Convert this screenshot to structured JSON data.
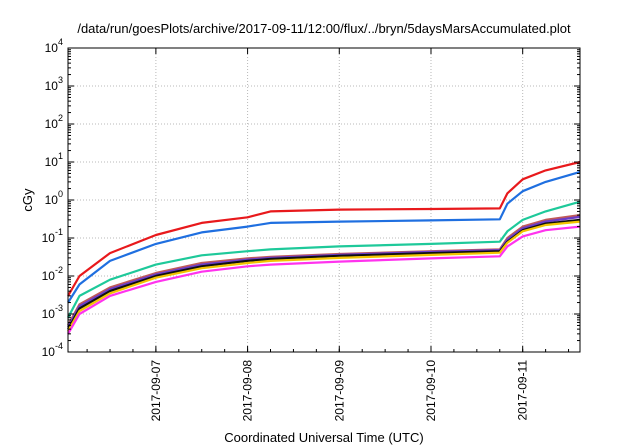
{
  "chart_data": {
    "type": "line",
    "title": "/data/run/goesPlots/archive/2017-09-11/12:00/flux/../bryn/5daysMarsAccumulated.plot",
    "xlabel": "Coordinated Universal Time (UTC)",
    "ylabel": "cGy",
    "x_scale": "time",
    "y_scale": "log",
    "xlim": [
      "2017-09-06T01:00",
      "2017-09-11T15:00"
    ],
    "ylim": [
      0.0001,
      10000
    ],
    "grid": true,
    "x_ticks": [
      "2017-09-07",
      "2017-09-08",
      "2017-09-09",
      "2017-09-10",
      "2017-09-11"
    ],
    "y_ticks": [
      {
        "value": 0.0001,
        "mant": "10",
        "exp": "-4"
      },
      {
        "value": 0.001,
        "mant": "10",
        "exp": "-3"
      },
      {
        "value": 0.01,
        "mant": "10",
        "exp": "-2"
      },
      {
        "value": 0.1,
        "mant": "10",
        "exp": "-1"
      },
      {
        "value": 1,
        "mant": "10",
        "exp": "0"
      },
      {
        "value": 10,
        "mant": "10",
        "exp": "1"
      },
      {
        "value": 100,
        "mant": "10",
        "exp": "2"
      },
      {
        "value": 1000,
        "mant": "10",
        "exp": "3"
      },
      {
        "value": 10000,
        "mant": "10",
        "exp": "4"
      }
    ],
    "series": [
      {
        "color": "#e8191c",
        "x": [
          "2017-09-06T01:00",
          "2017-09-06T04:00",
          "2017-09-06T12:00",
          "2017-09-07T00:00",
          "2017-09-07T12:00",
          "2017-09-08T00:00",
          "2017-09-08T06:00",
          "2017-09-09T00:00",
          "2017-09-10T00:00",
          "2017-09-10T18:00",
          "2017-09-10T20:00",
          "2017-09-11T00:00",
          "2017-09-11T06:00",
          "2017-09-11T15:00"
        ],
        "values": [
          0.003,
          0.01,
          0.04,
          0.12,
          0.25,
          0.35,
          0.5,
          0.56,
          0.58,
          0.6,
          1.5,
          3.5,
          6.0,
          10.0
        ]
      },
      {
        "color": "#1f6fe0",
        "x": [
          "2017-09-06T01:00",
          "2017-09-06T04:00",
          "2017-09-06T12:00",
          "2017-09-07T00:00",
          "2017-09-07T12:00",
          "2017-09-08T00:00",
          "2017-09-08T06:00",
          "2017-09-09T00:00",
          "2017-09-10T00:00",
          "2017-09-10T18:00",
          "2017-09-10T20:00",
          "2017-09-11T00:00",
          "2017-09-11T06:00",
          "2017-09-11T15:00"
        ],
        "values": [
          0.002,
          0.006,
          0.025,
          0.07,
          0.14,
          0.2,
          0.25,
          0.27,
          0.29,
          0.31,
          0.8,
          1.7,
          3.0,
          5.5
        ]
      },
      {
        "color": "#1ec99a",
        "x": [
          "2017-09-06T01:00",
          "2017-09-06T04:00",
          "2017-09-06T12:00",
          "2017-09-07T00:00",
          "2017-09-07T12:00",
          "2017-09-08T00:00",
          "2017-09-08T06:00",
          "2017-09-09T00:00",
          "2017-09-10T00:00",
          "2017-09-10T18:00",
          "2017-09-10T20:00",
          "2017-09-11T00:00",
          "2017-09-11T06:00",
          "2017-09-11T15:00"
        ],
        "values": [
          0.0008,
          0.003,
          0.008,
          0.02,
          0.035,
          0.045,
          0.05,
          0.06,
          0.07,
          0.08,
          0.15,
          0.3,
          0.5,
          0.9
        ]
      },
      {
        "color": "#c05a5a",
        "x": [
          "2017-09-06T01:00",
          "2017-09-06T04:00",
          "2017-09-06T12:00",
          "2017-09-07T00:00",
          "2017-09-07T12:00",
          "2017-09-08T00:00",
          "2017-09-08T06:00",
          "2017-09-09T00:00",
          "2017-09-10T00:00",
          "2017-09-10T18:00",
          "2017-09-10T20:00",
          "2017-09-11T00:00",
          "2017-09-11T06:00",
          "2017-09-11T15:00"
        ],
        "values": [
          0.0005,
          0.0018,
          0.005,
          0.012,
          0.022,
          0.029,
          0.032,
          0.038,
          0.045,
          0.05,
          0.1,
          0.2,
          0.3,
          0.4
        ]
      },
      {
        "color": "#6a3cc8",
        "x": [
          "2017-09-06T01:00",
          "2017-09-06T04:00",
          "2017-09-06T12:00",
          "2017-09-07T00:00",
          "2017-09-07T12:00",
          "2017-09-08T00:00",
          "2017-09-08T06:00",
          "2017-09-09T00:00",
          "2017-09-10T00:00",
          "2017-09-10T18:00",
          "2017-09-10T20:00",
          "2017-09-11T00:00",
          "2017-09-11T06:00",
          "2017-09-11T15:00"
        ],
        "values": [
          0.00045,
          0.0016,
          0.0045,
          0.011,
          0.02,
          0.027,
          0.03,
          0.036,
          0.043,
          0.048,
          0.09,
          0.18,
          0.27,
          0.36
        ]
      },
      {
        "color": "#101010",
        "x": [
          "2017-09-06T01:00",
          "2017-09-06T04:00",
          "2017-09-06T12:00",
          "2017-09-07T00:00",
          "2017-09-07T12:00",
          "2017-09-08T00:00",
          "2017-09-08T06:00",
          "2017-09-09T00:00",
          "2017-09-10T00:00",
          "2017-09-10T18:00",
          "2017-09-10T20:00",
          "2017-09-11T00:00",
          "2017-09-11T06:00",
          "2017-09-11T15:00"
        ],
        "values": [
          0.0004,
          0.0014,
          0.004,
          0.01,
          0.018,
          0.025,
          0.028,
          0.034,
          0.04,
          0.045,
          0.08,
          0.16,
          0.24,
          0.3
        ]
      },
      {
        "color": "#f2c400",
        "x": [
          "2017-09-06T01:00",
          "2017-09-06T04:00",
          "2017-09-06T12:00",
          "2017-09-07T00:00",
          "2017-09-07T12:00",
          "2017-09-08T00:00",
          "2017-09-08T06:00",
          "2017-09-09T00:00",
          "2017-09-10T00:00",
          "2017-09-10T18:00",
          "2017-09-10T20:00",
          "2017-09-11T00:00",
          "2017-09-11T06:00",
          "2017-09-11T15:00"
        ],
        "values": [
          0.00035,
          0.0012,
          0.0035,
          0.009,
          0.016,
          0.022,
          0.025,
          0.03,
          0.036,
          0.041,
          0.075,
          0.15,
          0.22,
          0.27
        ]
      },
      {
        "color": "#ff33ee",
        "x": [
          "2017-09-06T01:00",
          "2017-09-06T04:00",
          "2017-09-06T12:00",
          "2017-09-07T00:00",
          "2017-09-07T12:00",
          "2017-09-08T00:00",
          "2017-09-08T06:00",
          "2017-09-09T00:00",
          "2017-09-10T00:00",
          "2017-09-10T18:00",
          "2017-09-10T20:00",
          "2017-09-11T00:00",
          "2017-09-11T06:00",
          "2017-09-11T15:00"
        ],
        "values": [
          0.0003,
          0.001,
          0.003,
          0.007,
          0.013,
          0.018,
          0.02,
          0.024,
          0.029,
          0.033,
          0.06,
          0.11,
          0.16,
          0.2
        ]
      }
    ]
  }
}
